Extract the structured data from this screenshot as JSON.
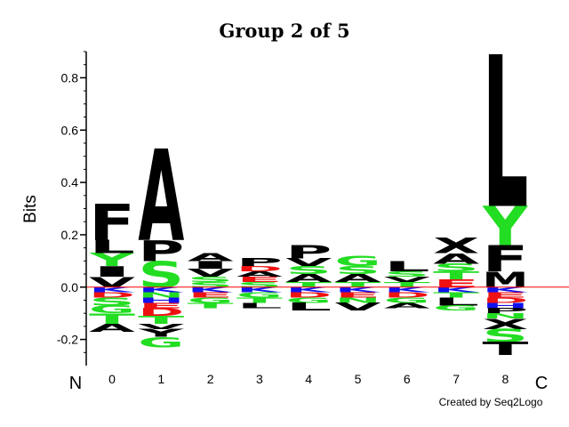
{
  "chart_data": {
    "type": "sequence-logo",
    "title": "Group 2 of 5",
    "ylabel": "Bits",
    "ylim": [
      -0.3,
      0.9
    ],
    "yticks": [
      -0.2,
      0.0,
      0.2,
      0.4,
      0.6,
      0.8
    ],
    "ytick_labels": [
      "-0.2",
      "0.0",
      "0.2",
      "0.4",
      "0.6",
      "0.8"
    ],
    "x_start_label": "N",
    "x_end_label": "C",
    "positions": [
      "0",
      "1",
      "2",
      "3",
      "4",
      "5",
      "6",
      "7",
      "8"
    ],
    "credit": "Created by Seq2Logo",
    "colors": {
      "hydrophobic": "#000000",
      "polar": "#22dd22",
      "acidic": "#ee1111",
      "basic": "#1111ee",
      "zero_line": "#ff0000"
    },
    "columns": [
      {
        "pos": "0",
        "positive": [
          {
            "letter": "V",
            "height": 0.04,
            "color": "#000000"
          },
          {
            "letter": "I",
            "height": 0.04,
            "color": "#000000"
          },
          {
            "letter": "Y",
            "height": 0.05,
            "color": "#22dd22"
          },
          {
            "letter": "L",
            "height": 0.05,
            "color": "#000000"
          },
          {
            "letter": "F",
            "height": 0.14,
            "color": "#000000"
          }
        ],
        "negative": [
          {
            "letter": "K",
            "height": 0.02,
            "color": "#1111ee"
          },
          {
            "letter": "D",
            "height": 0.02,
            "color": "#ee1111"
          },
          {
            "letter": "S",
            "height": 0.03,
            "color": "#22dd22"
          },
          {
            "letter": "G",
            "height": 0.03,
            "color": "#22dd22"
          },
          {
            "letter": "T",
            "height": 0.04,
            "color": "#22dd22"
          },
          {
            "letter": "A",
            "height": 0.03,
            "color": "#000000"
          }
        ]
      },
      {
        "pos": "1",
        "positive": [
          {
            "letter": "S",
            "height": 0.1,
            "color": "#22dd22"
          },
          {
            "letter": "P",
            "height": 0.08,
            "color": "#000000"
          },
          {
            "letter": "A",
            "height": 0.35,
            "color": "#000000"
          }
        ],
        "negative": [
          {
            "letter": "K",
            "height": 0.02,
            "color": "#1111ee"
          },
          {
            "letter": "N",
            "height": 0.02,
            "color": "#22dd22"
          },
          {
            "letter": "H",
            "height": 0.02,
            "color": "#1111ee"
          },
          {
            "letter": "E",
            "height": 0.02,
            "color": "#ee1111"
          },
          {
            "letter": "D",
            "height": 0.03,
            "color": "#ee1111"
          },
          {
            "letter": "T",
            "height": 0.03,
            "color": "#22dd22"
          },
          {
            "letter": "V",
            "height": 0.02,
            "color": "#000000"
          },
          {
            "letter": "Y",
            "height": 0.03,
            "color": "#000000"
          },
          {
            "letter": "G",
            "height": 0.04,
            "color": "#22dd22"
          }
        ]
      },
      {
        "pos": "2",
        "positive": [
          {
            "letter": "S",
            "height": 0.02,
            "color": "#22dd22"
          },
          {
            "letter": "S",
            "height": 0.02,
            "color": "#22dd22"
          },
          {
            "letter": "V",
            "height": 0.03,
            "color": "#000000"
          },
          {
            "letter": "I",
            "height": 0.03,
            "color": "#000000"
          },
          {
            "letter": "A",
            "height": 0.03,
            "color": "#000000"
          }
        ],
        "negative": [
          {
            "letter": "K",
            "height": 0.02,
            "color": "#1111ee"
          },
          {
            "letter": "E",
            "height": 0.02,
            "color": "#ee1111"
          },
          {
            "letter": "G",
            "height": 0.02,
            "color": "#22dd22"
          },
          {
            "letter": "T",
            "height": 0.02,
            "color": "#22dd22"
          }
        ]
      },
      {
        "pos": "3",
        "positive": [
          {
            "letter": "S",
            "height": 0.02,
            "color": "#22dd22"
          },
          {
            "letter": "E",
            "height": 0.02,
            "color": "#ee1111"
          },
          {
            "letter": "A",
            "height": 0.02,
            "color": "#000000"
          },
          {
            "letter": "D",
            "height": 0.02,
            "color": "#ee1111"
          },
          {
            "letter": "P",
            "height": 0.03,
            "color": "#000000"
          }
        ],
        "negative": [
          {
            "letter": "K",
            "height": 0.02,
            "color": "#1111ee"
          },
          {
            "letter": "G",
            "height": 0.02,
            "color": "#22dd22"
          },
          {
            "letter": "T",
            "height": 0.02,
            "color": "#22dd22"
          },
          {
            "letter": "L",
            "height": 0.02,
            "color": "#000000"
          }
        ]
      },
      {
        "pos": "4",
        "positive": [
          {
            "letter": "T",
            "height": 0.02,
            "color": "#22dd22"
          },
          {
            "letter": "A",
            "height": 0.03,
            "color": "#000000"
          },
          {
            "letter": "S",
            "height": 0.03,
            "color": "#22dd22"
          },
          {
            "letter": "V",
            "height": 0.03,
            "color": "#000000"
          },
          {
            "letter": "P",
            "height": 0.05,
            "color": "#000000"
          }
        ],
        "negative": [
          {
            "letter": "K",
            "height": 0.02,
            "color": "#1111ee"
          },
          {
            "letter": "D",
            "height": 0.02,
            "color": "#ee1111"
          },
          {
            "letter": "G",
            "height": 0.02,
            "color": "#22dd22"
          },
          {
            "letter": "L",
            "height": 0.03,
            "color": "#000000"
          }
        ]
      },
      {
        "pos": "5",
        "positive": [
          {
            "letter": "T",
            "height": 0.02,
            "color": "#22dd22"
          },
          {
            "letter": "A",
            "height": 0.03,
            "color": "#000000"
          },
          {
            "letter": "S",
            "height": 0.03,
            "color": "#22dd22"
          },
          {
            "letter": "G",
            "height": 0.04,
            "color": "#22dd22"
          }
        ],
        "negative": [
          {
            "letter": "K",
            "height": 0.02,
            "color": "#1111ee"
          },
          {
            "letter": "E",
            "height": 0.02,
            "color": "#ee1111"
          },
          {
            "letter": "N",
            "height": 0.02,
            "color": "#22dd22"
          },
          {
            "letter": "V",
            "height": 0.03,
            "color": "#000000"
          }
        ]
      },
      {
        "pos": "6",
        "positive": [
          {
            "letter": "T",
            "height": 0.02,
            "color": "#22dd22"
          },
          {
            "letter": "V",
            "height": 0.02,
            "color": "#000000"
          },
          {
            "letter": "S",
            "height": 0.02,
            "color": "#22dd22"
          },
          {
            "letter": "L",
            "height": 0.04,
            "color": "#000000"
          }
        ],
        "negative": [
          {
            "letter": "K",
            "height": 0.02,
            "color": "#1111ee"
          },
          {
            "letter": "D",
            "height": 0.02,
            "color": "#ee1111"
          },
          {
            "letter": "G",
            "height": 0.02,
            "color": "#22dd22"
          },
          {
            "letter": "A",
            "height": 0.02,
            "color": "#000000"
          }
        ]
      },
      {
        "pos": "7",
        "positive": [
          {
            "letter": "E",
            "height": 0.03,
            "color": "#ee1111"
          },
          {
            "letter": "T",
            "height": 0.03,
            "color": "#22dd22"
          },
          {
            "letter": "S",
            "height": 0.03,
            "color": "#22dd22"
          },
          {
            "letter": "A",
            "height": 0.04,
            "color": "#000000"
          },
          {
            "letter": "X",
            "height": 0.06,
            "color": "#000000"
          }
        ],
        "negative": [
          {
            "letter": "K",
            "height": 0.02,
            "color": "#1111ee"
          },
          {
            "letter": "T",
            "height": 0.02,
            "color": "#22dd22"
          },
          {
            "letter": "L",
            "height": 0.03,
            "color": "#000000"
          },
          {
            "letter": "G",
            "height": 0.02,
            "color": "#22dd22"
          }
        ]
      },
      {
        "pos": "8",
        "positive": [
          {
            "letter": "M",
            "height": 0.06,
            "color": "#000000"
          },
          {
            "letter": "F",
            "height": 0.1,
            "color": "#000000"
          },
          {
            "letter": "Y",
            "height": 0.15,
            "color": "#22dd22"
          },
          {
            "letter": "L",
            "height": 0.58,
            "color": "#000000"
          }
        ],
        "negative": [
          {
            "letter": "K",
            "height": 0.02,
            "color": "#1111ee"
          },
          {
            "letter": "E",
            "height": 0.02,
            "color": "#ee1111"
          },
          {
            "letter": "D",
            "height": 0.02,
            "color": "#ee1111"
          },
          {
            "letter": "H",
            "height": 0.02,
            "color": "#1111ee"
          },
          {
            "letter": "P",
            "height": 0.02,
            "color": "#000000"
          },
          {
            "letter": "N",
            "height": 0.02,
            "color": "#22dd22"
          },
          {
            "letter": "X",
            "height": 0.04,
            "color": "#000000"
          },
          {
            "letter": "S",
            "height": 0.05,
            "color": "#22dd22"
          },
          {
            "letter": "T",
            "height": 0.05,
            "color": "#000000"
          }
        ]
      }
    ]
  }
}
